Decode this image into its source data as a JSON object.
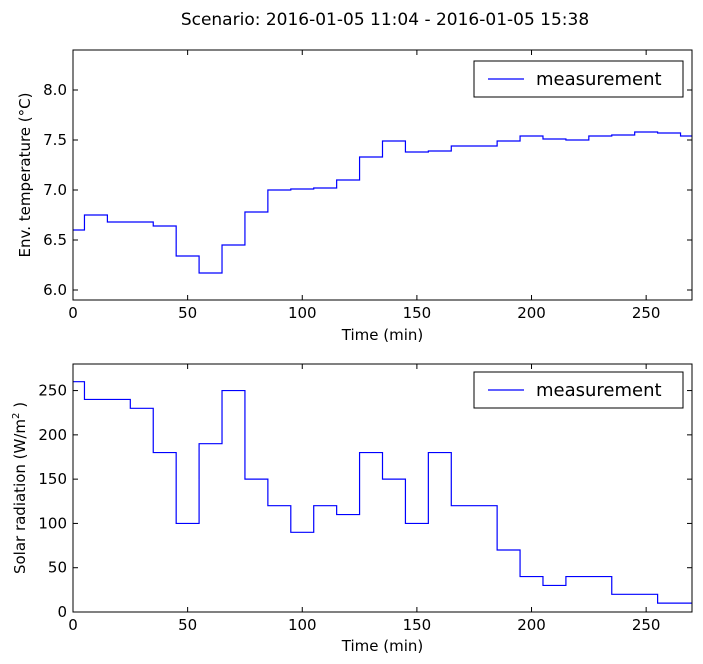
{
  "figure": {
    "title": "Scenario: 2016-01-05 11:04 - 2016-01-05 15:38",
    "line_color": "#0000ff"
  },
  "chart_data": [
    {
      "type": "line",
      "step": "post",
      "xlabel": "Time (min)",
      "ylabel": "Env. temperature (",
      "ylabel_unit": "°C",
      "ylabel_close": ")",
      "xlim": [
        0,
        270
      ],
      "ylim": [
        5.9,
        8.4
      ],
      "xticks": [
        0,
        50,
        100,
        150,
        200,
        250
      ],
      "xtick_labels": [
        "0",
        "50",
        "100",
        "150",
        "200",
        "250"
      ],
      "yticks": [
        6.0,
        6.5,
        7.0,
        7.5,
        8.0
      ],
      "ytick_labels": [
        "6.0",
        "6.5",
        "7.0",
        "7.5",
        "8.0"
      ],
      "legend": {
        "position": "upper right",
        "entries": [
          "measurement"
        ]
      },
      "series": [
        {
          "name": "measurement",
          "x": [
            0,
            5,
            15,
            25,
            35,
            45,
            55,
            65,
            75,
            85,
            95,
            105,
            115,
            125,
            135,
            145,
            155,
            165,
            175,
            185,
            195,
            205,
            215,
            225,
            235,
            245,
            255,
            265,
            270
          ],
          "y": [
            6.6,
            6.75,
            6.68,
            6.68,
            6.64,
            6.34,
            6.17,
            6.45,
            6.78,
            7.0,
            7.01,
            7.02,
            7.1,
            7.33,
            7.49,
            7.38,
            7.39,
            7.44,
            7.44,
            7.49,
            7.54,
            7.51,
            7.5,
            7.54,
            7.55,
            7.58,
            7.57,
            7.54,
            7.54
          ]
        }
      ]
    },
    {
      "type": "line",
      "step": "post",
      "xlabel": "Time (min)",
      "ylabel": "Solar radiation (",
      "ylabel_unit": "W/m",
      "ylabel_sup": "2",
      "ylabel_close": ")",
      "xlim": [
        0,
        270
      ],
      "ylim": [
        0,
        280
      ],
      "xticks": [
        0,
        50,
        100,
        150,
        200,
        250
      ],
      "xtick_labels": [
        "0",
        "50",
        "100",
        "150",
        "200",
        "250"
      ],
      "yticks": [
        0,
        50,
        100,
        150,
        200,
        250
      ],
      "ytick_labels": [
        "0",
        "50",
        "100",
        "150",
        "200",
        "250"
      ],
      "legend": {
        "position": "upper right",
        "entries": [
          "measurement"
        ]
      },
      "series": [
        {
          "name": "measurement",
          "x": [
            0,
            5,
            15,
            25,
            35,
            45,
            55,
            65,
            75,
            85,
            95,
            105,
            115,
            125,
            135,
            145,
            155,
            165,
            175,
            185,
            195,
            205,
            215,
            225,
            235,
            245,
            255,
            265,
            270
          ],
          "y": [
            260,
            240,
            240,
            230,
            180,
            100,
            190,
            250,
            150,
            120,
            90,
            120,
            110,
            180,
            150,
            100,
            180,
            120,
            120,
            70,
            40,
            30,
            40,
            40,
            20,
            20,
            10,
            10,
            10
          ]
        }
      ]
    }
  ]
}
